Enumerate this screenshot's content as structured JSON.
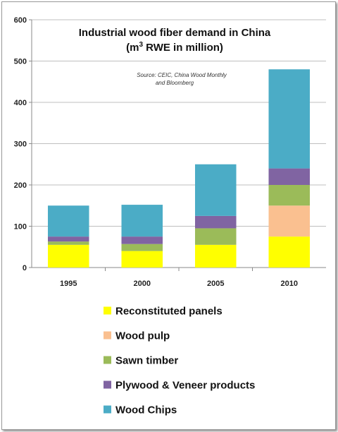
{
  "chart_data": {
    "type": "bar",
    "stacked": true,
    "title_line1": "Industrial wood fiber demand in China",
    "title_line2_pre": "(m",
    "title_line2_sup": "3",
    "title_line2_post": " RWE in million)",
    "source_line1": "Source: CEIC, China Wood Monthly",
    "source_line2": "and Bloomberg",
    "categories": [
      "1995",
      "2000",
      "2005",
      "2010"
    ],
    "ylim": [
      0,
      600
    ],
    "yticks": [
      "0",
      "100",
      "200",
      "300",
      "400",
      "500",
      "600"
    ],
    "grid": true,
    "legend_position": "bottom",
    "series": [
      {
        "name": "Reconstituted panels",
        "color": "#ffff00",
        "values": [
          55,
          40,
          55,
          75
        ]
      },
      {
        "name": "Wood pulp",
        "color": "#fac090",
        "values": [
          0,
          0,
          0,
          75
        ]
      },
      {
        "name": "Sawn timber",
        "color": "#9bbb59",
        "values": [
          8,
          17,
          40,
          50
        ]
      },
      {
        "name": "Plywood & Veneer products",
        "color": "#8064a2",
        "values": [
          12,
          18,
          30,
          40
        ]
      },
      {
        "name": "Wood Chips",
        "color": "#4bacc6",
        "values": [
          75,
          77,
          125,
          240
        ]
      }
    ]
  }
}
